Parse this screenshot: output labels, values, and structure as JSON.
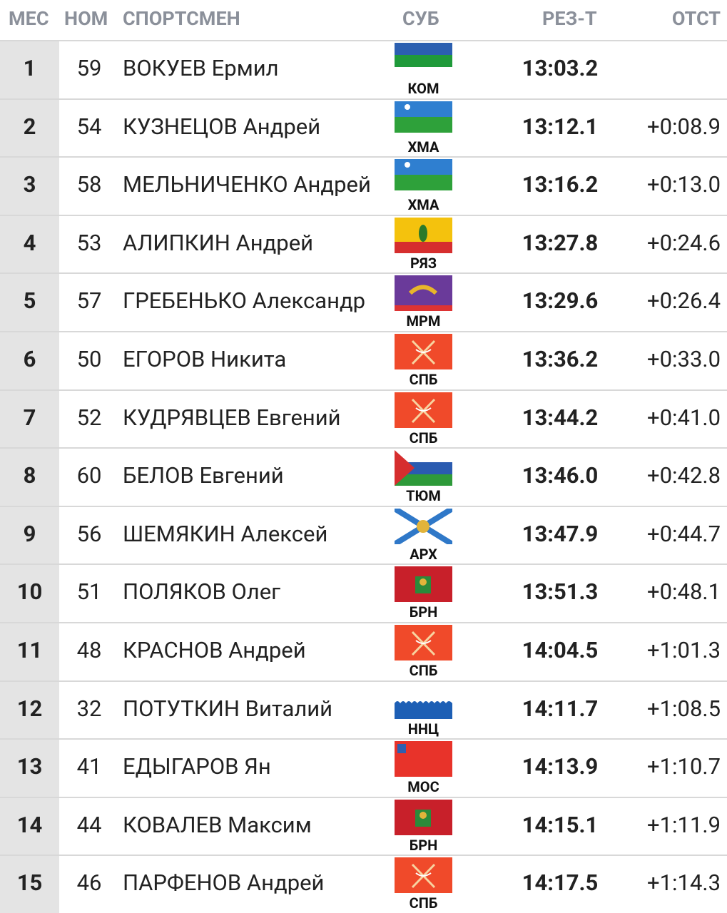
{
  "header": {
    "place": "МЕС",
    "bib": "НОМ",
    "name": "СПОРТСМЕН",
    "region": "СУБ",
    "result": "РЕЗ-Т",
    "gap": "ОТСТ"
  },
  "table": {
    "rows": [
      {
        "place": 1,
        "bib": 59,
        "name": "ВОКУЕВ Ермил",
        "region": "КОМ",
        "result": "13:03.2"
      },
      {
        "place": 2,
        "bib": 54,
        "name": "КУЗНЕЦОВ Андрей",
        "region": "ХМА",
        "result": "13:12.1",
        "gap": "+0:08.9"
      },
      {
        "place": 3,
        "bib": 58,
        "name": "МЕЛЬНИЧЕНКО Андрей",
        "region": "ХМА",
        "result": "13:16.2",
        "gap": "+0:13.0"
      },
      {
        "place": 4,
        "bib": 53,
        "name": "АЛИПКИН Андрей",
        "region": "РЯЗ",
        "result": "13:27.8",
        "gap": "+0:24.6"
      },
      {
        "place": 5,
        "bib": 57,
        "name": "ГРЕБЕНЬКО Александр",
        "region": "МРМ",
        "result": "13:29.6",
        "gap": "+0:26.4"
      },
      {
        "place": 6,
        "bib": 50,
        "name": "ЕГОРОВ Никита",
        "region": "СПБ",
        "result": "13:36.2",
        "gap": "+0:33.0"
      },
      {
        "place": 7,
        "bib": 52,
        "name": "КУДРЯВЦЕВ Евгений",
        "region": "СПБ",
        "result": "13:44.2",
        "gap": "+0:41.0"
      },
      {
        "place": 8,
        "bib": 60,
        "name": "БЕЛОВ Евгений",
        "region": "ТЮМ",
        "result": "13:46.0",
        "gap": "+0:42.8"
      },
      {
        "place": 9,
        "bib": 56,
        "name": "ШЕМЯКИН Алексей",
        "region": "АРХ",
        "result": "13:47.9",
        "gap": "+0:44.7"
      },
      {
        "place": 10,
        "bib": 51,
        "name": "ПОЛЯКОВ Олег",
        "region": "БРН",
        "result": "13:51.3",
        "gap": "+0:48.1"
      },
      {
        "place": 11,
        "bib": 48,
        "name": "КРАСНОВ Андрей",
        "region": "СПБ",
        "result": "14:04.5",
        "gap": "+1:01.3"
      },
      {
        "place": 12,
        "bib": 32,
        "name": "ПОТУТКИН Виталий",
        "region": "ННЦ",
        "result": "14:11.7",
        "gap": "+1:08.5"
      },
      {
        "place": 13,
        "bib": 41,
        "name": "ЕДЫГАРОВ Ян",
        "region": "МОС",
        "result": "14:13.9",
        "gap": "+1:10.7"
      },
      {
        "place": 14,
        "bib": 44,
        "name": "КОВАЛЕВ Максим",
        "region": "БРН",
        "result": "14:15.1",
        "gap": "+1:11.9"
      },
      {
        "place": 15,
        "bib": 46,
        "name": "ПАРФЕНОВ Андрей",
        "region": "СПБ",
        "result": "14:17.5",
        "gap": "+1:14.3"
      }
    ]
  }
}
